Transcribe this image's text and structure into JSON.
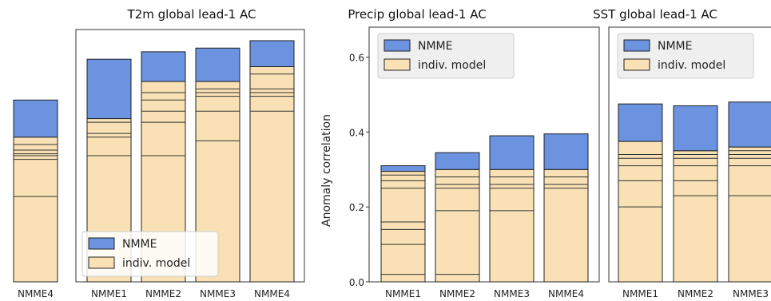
{
  "legend_labels": {
    "nmme": "NMME",
    "indiv": "indiv. model"
  },
  "colors": {
    "nmme": "#6b93e0",
    "indiv": "#f9e1b5",
    "edge": "#222222",
    "legend_bg": "#ececec"
  },
  "chart_data": [
    {
      "type": "bar",
      "stacked": true,
      "title": "",
      "categories": [
        "NMME4"
      ],
      "ylim": [
        0,
        0.68
      ],
      "nmme_values": [
        0.49
      ],
      "indiv_max": [
        0.39
      ],
      "indiv_models": [
        [
          0.23,
          0.33,
          0.34,
          0.345,
          0.355,
          0.37
        ]
      ],
      "legend": "none"
    },
    {
      "type": "bar",
      "stacked": true,
      "title": "T2m global lead-1 AC",
      "categories": [
        "NMME1",
        "NMME2",
        "NMME3",
        "NMME4"
      ],
      "ylim": [
        0,
        0.68
      ],
      "nmme_values": [
        0.6,
        0.62,
        0.63,
        0.65
      ],
      "indiv_max": [
        0.44,
        0.54,
        0.54,
        0.58
      ],
      "indiv_models": [
        [
          0.34,
          0.39,
          0.4,
          0.43
        ],
        [
          0.34,
          0.43,
          0.46,
          0.49,
          0.51
        ],
        [
          0.38,
          0.46,
          0.5,
          0.51,
          0.52
        ],
        [
          0.46,
          0.5,
          0.51,
          0.52,
          0.56
        ]
      ],
      "legend": "lower-left"
    },
    {
      "type": "bar",
      "stacked": true,
      "title": "Precip global lead-1 AC",
      "categories": [
        "NMME1",
        "NMME2",
        "NMME3",
        "NMME4"
      ],
      "ylabel": "Anomaly correlation",
      "yticks": [
        "0.0",
        "0.2",
        "0.4",
        "0.6"
      ],
      "ylim": [
        0,
        0.68
      ],
      "nmme_values": [
        0.31,
        0.345,
        0.39,
        0.395
      ],
      "indiv_max": [
        0.295,
        0.3,
        0.3,
        0.3
      ],
      "indiv_models": [
        [
          0.02,
          0.1,
          0.14,
          0.16,
          0.25,
          0.27,
          0.285
        ],
        [
          0.02,
          0.19,
          0.25,
          0.26,
          0.28
        ],
        [
          0.19,
          0.25,
          0.26,
          0.28
        ],
        [
          0.25,
          0.26,
          0.28
        ]
      ],
      "legend": "upper-left"
    },
    {
      "type": "bar",
      "stacked": true,
      "title": "SST global lead-1 AC",
      "categories": [
        "NMME1",
        "NMME2",
        "NMME3"
      ],
      "ylim": [
        0,
        0.68
      ],
      "nmme_values": [
        0.475,
        0.47,
        0.48
      ],
      "indiv_max": [
        0.375,
        0.35,
        0.36
      ],
      "indiv_models": [
        [
          0.2,
          0.27,
          0.31,
          0.33,
          0.34
        ],
        [
          0.23,
          0.27,
          0.31,
          0.33,
          0.34
        ],
        [
          0.23,
          0.31,
          0.33,
          0.34,
          0.35
        ]
      ],
      "legend": "upper-left"
    }
  ]
}
